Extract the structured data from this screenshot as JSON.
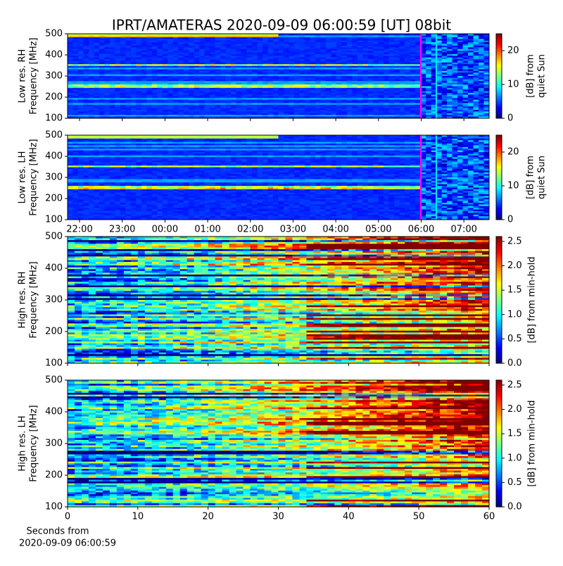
{
  "title": "IPRT/AMATERAS 2020-09-09 06:00:59 [UT]   08bit",
  "xlabel": [
    "Seconds from",
    "2020-09-09 06:00:59"
  ],
  "chart_data": [
    {
      "type": "heatmap",
      "ylabel": [
        "Low res. RH",
        "Frequency [MHz]"
      ],
      "ylim": [
        100,
        500
      ],
      "yticks": [
        100,
        200,
        300,
        400,
        500
      ],
      "colorbar_label": [
        "[dB] from",
        "quiet Sun"
      ],
      "clim": [
        0,
        25
      ],
      "cticks": [
        0,
        10,
        20
      ]
    },
    {
      "type": "heatmap",
      "ylabel": [
        "Low res. LH",
        "Frequency [MHz]"
      ],
      "ylim": [
        100,
        500
      ],
      "yticks": [
        100,
        200,
        300,
        400,
        500
      ],
      "xlim": [
        -2.28,
        7.59
      ],
      "xticks": [
        {
          "value": -2,
          "label": "22:00"
        },
        {
          "value": -1,
          "label": "23:00"
        },
        {
          "value": 0,
          "label": "00:00"
        },
        {
          "value": 1,
          "label": "01:00"
        },
        {
          "value": 2,
          "label": "02:00"
        },
        {
          "value": 3,
          "label": "03:00"
        },
        {
          "value": 4,
          "label": "04:00"
        },
        {
          "value": 5,
          "label": "05:00"
        },
        {
          "value": 6,
          "label": "06:00"
        },
        {
          "value": 7,
          "label": "07:00"
        }
      ],
      "colorbar_label": [
        "[dB] from",
        "quiet Sun"
      ],
      "clim": [
        0,
        25
      ],
      "cticks": [
        0,
        10,
        20
      ]
    },
    {
      "type": "heatmap",
      "ylabel": [
        "High res. RH",
        "Frequency [MHz]"
      ],
      "ylim": [
        100,
        500
      ],
      "yticks": [
        100,
        200,
        300,
        400,
        500
      ],
      "colorbar_label": [
        "[dB] from min-hold"
      ],
      "clim": [
        0,
        2.6
      ],
      "cticks": [
        {
          "value": 0,
          "label": "0.0"
        },
        0.5,
        {
          "value": 1,
          "label": "1.0"
        },
        1.5,
        {
          "value": 2,
          "label": "2.0"
        },
        2.5
      ]
    },
    {
      "type": "heatmap",
      "ylabel": [
        "High res. LH",
        "Frequency [MHz]"
      ],
      "ylim": [
        100,
        500
      ],
      "yticks": [
        100,
        200,
        300,
        400,
        500
      ],
      "xlim": [
        0,
        60
      ],
      "xticks": [
        0,
        10,
        20,
        30,
        40,
        50,
        60
      ],
      "colorbar_label": [
        "[dB] from min-hold"
      ],
      "clim": [
        0,
        2.6
      ],
      "cticks": [
        {
          "value": 0,
          "label": "0.0"
        },
        0.5,
        {
          "value": 1,
          "label": "1.0"
        },
        1.5,
        {
          "value": 2,
          "label": "2.0"
        },
        2.5
      ]
    }
  ]
}
